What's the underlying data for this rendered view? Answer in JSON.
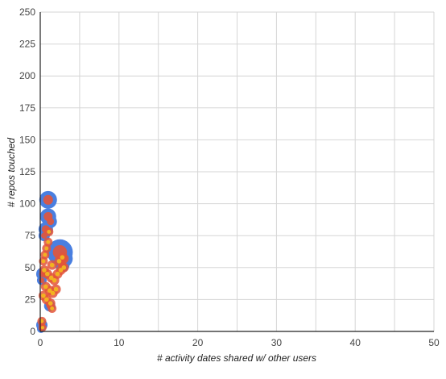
{
  "chart_data": {
    "type": "scatter",
    "xlabel": "# activity dates shared w/ other users",
    "ylabel": "# repos touched",
    "xlim": [
      0,
      50
    ],
    "ylim": [
      0,
      250
    ],
    "x_ticks": [
      "0",
      "10",
      "20",
      "30",
      "40",
      "50"
    ],
    "y_ticks": [
      "0",
      "25",
      "50",
      "75",
      "100",
      "125",
      "150",
      "175",
      "200",
      "225",
      "250"
    ],
    "grid": true,
    "legend": "none",
    "colors": {
      "bubble_outer": "#4a7fe0",
      "bubble_mid": "#e3553a",
      "bubble_inner": "#f2b221"
    },
    "series": [
      {
        "values": [
          {
            "x": 1.0,
            "y": 103,
            "size": 1.1
          },
          {
            "x": 1.0,
            "y": 90,
            "size": 1.0
          },
          {
            "x": 1.3,
            "y": 86,
            "size": 0.8
          },
          {
            "x": 0.7,
            "y": 80,
            "size": 0.9
          },
          {
            "x": 0.5,
            "y": 75,
            "size": 0.7
          },
          {
            "x": 2.5,
            "y": 62,
            "size": 1.6
          },
          {
            "x": 3.0,
            "y": 57,
            "size": 1.1
          },
          {
            "x": 2.8,
            "y": 52,
            "size": 0.9
          },
          {
            "x": 0.3,
            "y": 45,
            "size": 0.8
          },
          {
            "x": 0.2,
            "y": 40,
            "size": 0.6
          },
          {
            "x": 1.2,
            "y": 20,
            "size": 0.7
          },
          {
            "x": 0.2,
            "y": 5,
            "size": 0.7
          },
          {
            "x": 0.1,
            "y": 2,
            "size": 0.5
          }
        ]
      },
      {
        "values": [
          {
            "x": 0.4,
            "y": 55,
            "size": 0.35
          },
          {
            "x": 0.6,
            "y": 60,
            "size": 0.35
          },
          {
            "x": 0.8,
            "y": 65,
            "size": 0.35
          },
          {
            "x": 1.0,
            "y": 70,
            "size": 0.35
          },
          {
            "x": 1.1,
            "y": 78,
            "size": 0.35
          },
          {
            "x": 0.5,
            "y": 48,
            "size": 0.4
          },
          {
            "x": 0.9,
            "y": 45,
            "size": 0.4
          },
          {
            "x": 1.4,
            "y": 42,
            "size": 0.4
          },
          {
            "x": 1.8,
            "y": 40,
            "size": 0.4
          },
          {
            "x": 2.2,
            "y": 45,
            "size": 0.4
          },
          {
            "x": 2.6,
            "y": 48,
            "size": 0.4
          },
          {
            "x": 3.0,
            "y": 50,
            "size": 0.4
          },
          {
            "x": 0.7,
            "y": 35,
            "size": 0.4
          },
          {
            "x": 1.2,
            "y": 32,
            "size": 0.4
          },
          {
            "x": 1.6,
            "y": 30,
            "size": 0.4
          },
          {
            "x": 2.0,
            "y": 33,
            "size": 0.4
          },
          {
            "x": 0.4,
            "y": 28,
            "size": 0.4
          },
          {
            "x": 0.8,
            "y": 25,
            "size": 0.4
          },
          {
            "x": 1.3,
            "y": 22,
            "size": 0.4
          },
          {
            "x": 1.5,
            "y": 18,
            "size": 0.35
          },
          {
            "x": 2.4,
            "y": 55,
            "size": 0.4
          },
          {
            "x": 2.8,
            "y": 58,
            "size": 0.4
          },
          {
            "x": 1.5,
            "y": 52,
            "size": 0.4
          },
          {
            "x": 0.2,
            "y": 8,
            "size": 0.35
          },
          {
            "x": 0.3,
            "y": 3,
            "size": 0.3
          }
        ]
      }
    ]
  }
}
